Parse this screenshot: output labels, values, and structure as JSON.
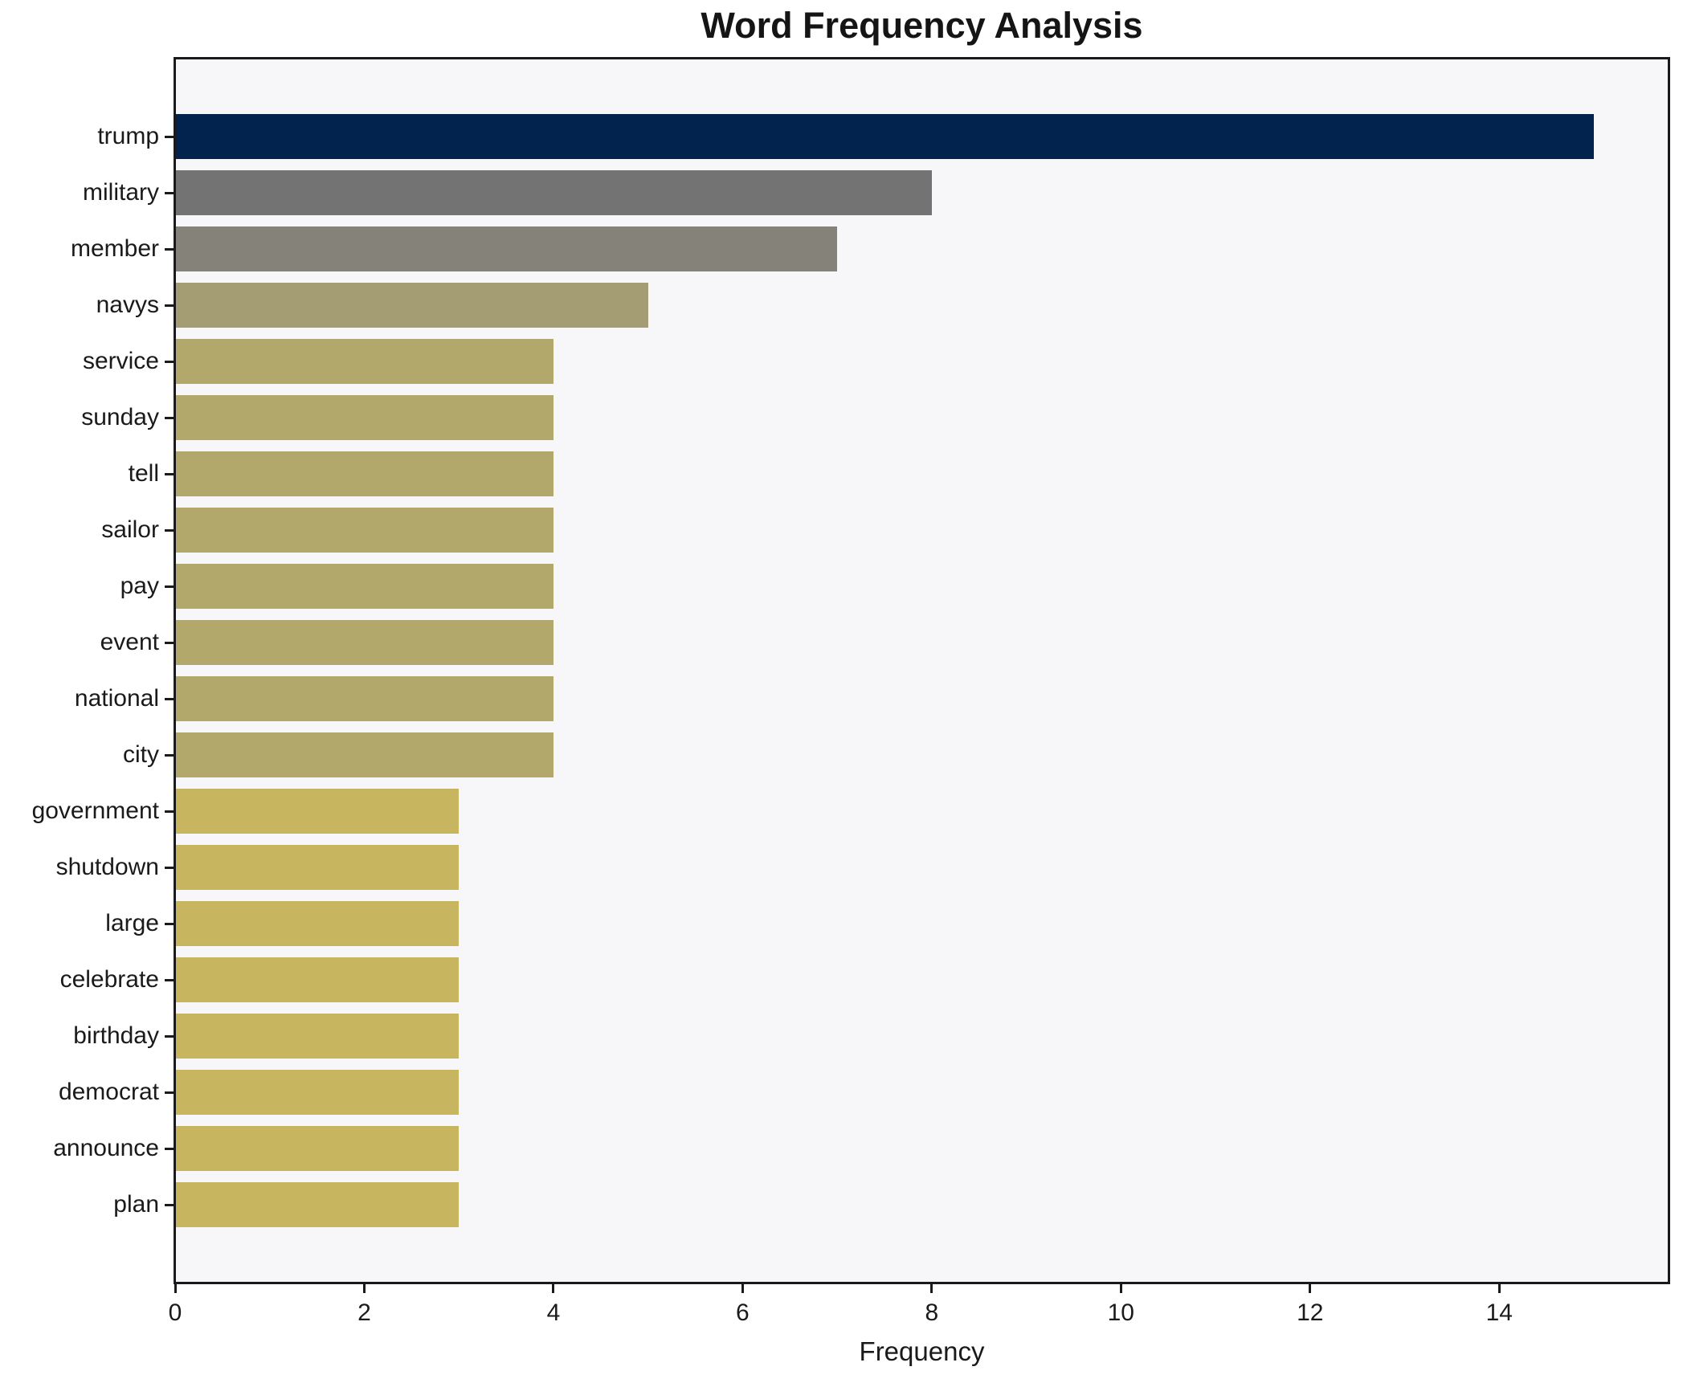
{
  "title": "Word Frequency Analysis",
  "x_axis": {
    "label": "Frequency",
    "tick_labels": [
      "0",
      "2",
      "4",
      "6",
      "8",
      "10",
      "12",
      "14"
    ]
  },
  "colors": {
    "figure_background": "#ffffff",
    "plot_background": "#f7f7f9",
    "axis_line": "#1a1a1d",
    "text": "#1a1a1a"
  },
  "chart_data": {
    "type": "bar",
    "orientation": "horizontal",
    "title": "Word Frequency Analysis",
    "xlabel": "Frequency",
    "ylabel": "",
    "categories": [
      "trump",
      "military",
      "member",
      "navys",
      "service",
      "sunday",
      "tell",
      "sailor",
      "pay",
      "event",
      "national",
      "city",
      "government",
      "shutdown",
      "large",
      "celebrate",
      "birthday",
      "democrat",
      "announce",
      "plan"
    ],
    "values": [
      15,
      8,
      7,
      5,
      4,
      4,
      4,
      4,
      4,
      4,
      4,
      4,
      3,
      3,
      3,
      3,
      3,
      3,
      3,
      3
    ],
    "bar_colors": [
      "#02234e",
      "#737374",
      "#85827a",
      "#a49c72",
      "#b3a86c",
      "#b3a86c",
      "#b3a86c",
      "#b3a86c",
      "#b3a86c",
      "#b3a86c",
      "#b3a86c",
      "#b3a86c",
      "#c7b55f",
      "#c7b55f",
      "#c7b55f",
      "#c7b55f",
      "#c7b55f",
      "#c7b55f",
      "#c7b55f",
      "#c7b55f"
    ],
    "xlim": [
      0,
      15.79
    ],
    "xticks": [
      0,
      2,
      4,
      6,
      8,
      10,
      12,
      14
    ],
    "grid": false,
    "legend": null
  }
}
